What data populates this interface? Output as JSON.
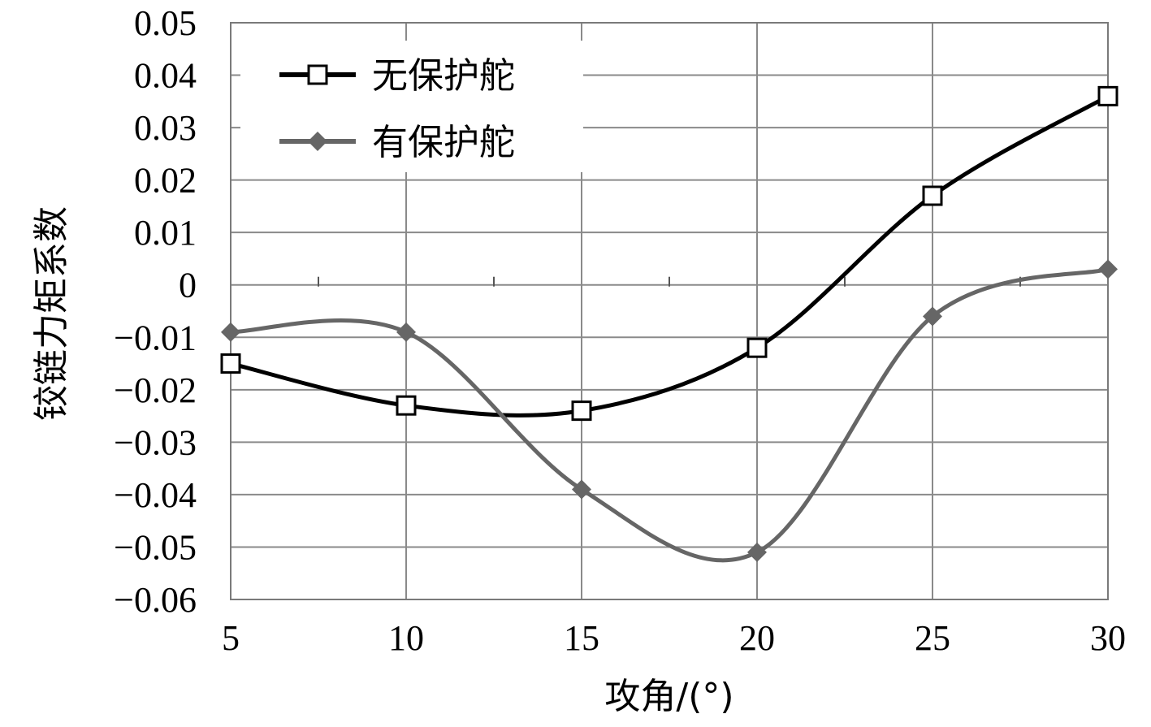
{
  "chart_data": {
    "type": "line",
    "title": "",
    "xlabel": "攻角/(°)",
    "ylabel": "铰链力矩系数",
    "x": [
      5,
      10,
      15,
      20,
      25,
      30
    ],
    "x_ticks": [
      "5",
      "10",
      "15",
      "20",
      "25",
      "30"
    ],
    "xlim": [
      5,
      30
    ],
    "y_ticks": [
      "0.05",
      "0.04",
      "0.03",
      "0.02",
      "0.01",
      "0",
      "−0.01",
      "−0.02",
      "−0.03",
      "−0.04",
      "−0.05",
      "−0.06"
    ],
    "y_tick_values": [
      0.05,
      0.04,
      0.03,
      0.02,
      0.01,
      0,
      -0.01,
      -0.02,
      -0.03,
      -0.04,
      -0.05,
      -0.06
    ],
    "ylim": [
      -0.06,
      0.05
    ],
    "grid": true,
    "legend_position": "top-left",
    "series": [
      {
        "name": "无保护舵",
        "marker": "square-open",
        "color": "#000000",
        "values": [
          -0.015,
          -0.023,
          -0.024,
          -0.012,
          0.017,
          0.036
        ]
      },
      {
        "name": "有保护舵",
        "marker": "diamond-filled",
        "color": "#666666",
        "values": [
          -0.009,
          -0.009,
          -0.039,
          -0.051,
          -0.006,
          0.003
        ]
      }
    ]
  }
}
